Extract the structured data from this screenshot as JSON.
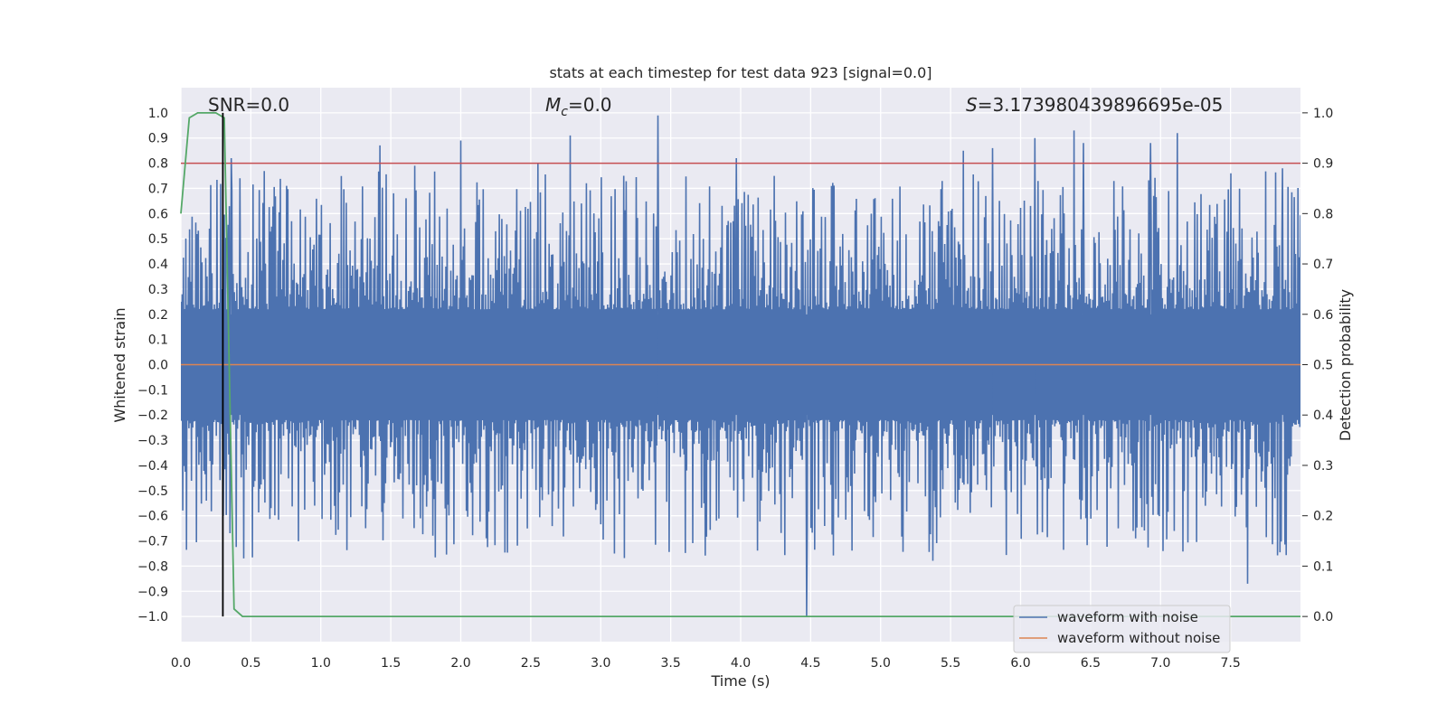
{
  "chart_data": {
    "type": "line",
    "title": "stats at each timestep for test data 923 [signal=0.0]",
    "xlabel": "Time (s)",
    "ylabel": "Whitened strain",
    "y2label": "Detection probability",
    "xlim": [
      0.0,
      8.0
    ],
    "ylim": [
      -1.1,
      1.1
    ],
    "y2lim": [
      -0.05,
      1.05
    ],
    "x_ticks": [
      0.0,
      0.5,
      1.0,
      1.5,
      2.0,
      2.5,
      3.0,
      3.5,
      4.0,
      4.5,
      5.0,
      5.5,
      6.0,
      6.5,
      7.0,
      7.5
    ],
    "x_tick_labels": [
      "0.0",
      "0.5",
      "1.0",
      "1.5",
      "2.0",
      "2.5",
      "3.0",
      "3.5",
      "4.0",
      "4.5",
      "5.0",
      "5.5",
      "6.0",
      "6.5",
      "7.0",
      "7.5"
    ],
    "y_ticks": [
      1.0,
      0.9,
      0.8,
      0.7,
      0.6,
      0.5,
      0.4,
      0.3,
      0.2,
      0.1,
      0.0,
      -0.1,
      -0.2,
      -0.3,
      -0.4,
      -0.5,
      -0.6,
      -0.7,
      -0.8,
      -0.9,
      -1.0
    ],
    "y_tick_labels": [
      "1.0",
      "0.9",
      "0.8",
      "0.7",
      "0.6",
      "0.5",
      "0.4",
      "0.3",
      "0.2",
      "0.1",
      "0.0",
      "−0.1",
      "−0.2",
      "−0.3",
      "−0.4",
      "−0.5",
      "−0.6",
      "−0.7",
      "−0.8",
      "−0.9",
      "−1.0"
    ],
    "y2_ticks": [
      1.0,
      0.9,
      0.8,
      0.7,
      0.6,
      0.5,
      0.4,
      0.3,
      0.2,
      0.1,
      0.0
    ],
    "y2_tick_labels": [
      "1.0",
      "0.9",
      "0.8",
      "0.7",
      "0.6",
      "0.5",
      "0.4",
      "0.3",
      "0.2",
      "0.1",
      "0.0"
    ],
    "annotations": {
      "snr": "SNR=0.0",
      "mc_symbol": "M",
      "mc_sub": "c",
      "mc_value": "=0.0",
      "s_symbol": "S",
      "s_value": "=3.173980439896695e-05"
    },
    "threshold_line": {
      "value": 0.9,
      "axis": "y2",
      "color": "#c44e52"
    },
    "marker_line": {
      "x": 0.3,
      "color": "#000000"
    },
    "series": [
      {
        "name": "waveform with noise",
        "color": "#4c72b0",
        "axis": "y",
        "description_stats": {
          "envelope_max": 1.0,
          "envelope_min": -1.0,
          "typical_abs": 0.45
        },
        "peaks_x": [
          0.3,
          0.36,
          0.42,
          1.67,
          2.0,
          2.78,
          3.41,
          3.97,
          4.47,
          5.59,
          5.8,
          6.1,
          6.38,
          6.45,
          6.93,
          7.12,
          7.5,
          7.62,
          7.87
        ],
        "peaks_y": [
          -0.6,
          0.82,
          0.74,
          0.79,
          0.89,
          0.91,
          0.99,
          0.82,
          -1.0,
          0.85,
          0.86,
          0.9,
          0.93,
          0.88,
          0.88,
          0.92,
          0.76,
          -0.87,
          0.78
        ]
      },
      {
        "name": "waveform without noise",
        "color": "#dd8452",
        "axis": "y",
        "x": [
          0.0,
          8.0
        ],
        "values": [
          0.0,
          0.0
        ]
      },
      {
        "name": "detection probability",
        "color": "#55a868",
        "axis": "y2",
        "x": [
          0.0,
          0.06,
          0.12,
          0.19,
          0.25,
          0.31,
          0.38,
          0.44,
          0.5,
          8.0
        ],
        "values": [
          0.8,
          0.99,
          1.0,
          1.0,
          1.0,
          0.99,
          0.015,
          0.0,
          0.0,
          0.0
        ]
      }
    ],
    "legend": {
      "position": "lower-right",
      "entries": [
        "waveform with noise",
        "waveform without noise"
      ],
      "colors": [
        "#4c72b0",
        "#dd8452"
      ]
    },
    "grid": true
  }
}
